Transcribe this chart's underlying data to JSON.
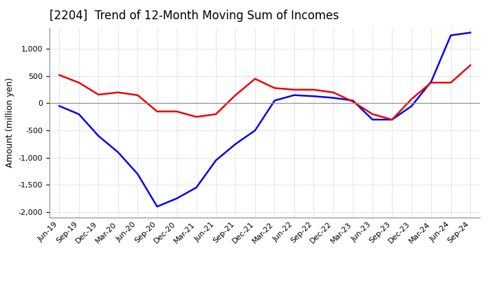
{
  "title": "[2204]  Trend of 12-Month Moving Sum of Incomes",
  "ylabel": "Amount (million yen)",
  "background_color": "#ffffff",
  "grid_color": "#bbbbbb",
  "line_color_ordinary": "#0000ee",
  "line_color_net": "#ee0000",
  "x_labels": [
    "Jun-19",
    "Sep-19",
    "Dec-19",
    "Mar-20",
    "Jun-20",
    "Sep-20",
    "Dec-20",
    "Mar-21",
    "Jun-21",
    "Sep-21",
    "Dec-21",
    "Mar-22",
    "Jun-22",
    "Sep-22",
    "Dec-22",
    "Mar-23",
    "Jun-23",
    "Sep-23",
    "Dec-23",
    "Mar-24",
    "Jun-24",
    "Sep-24"
  ],
  "ordinary_income": [
    -50,
    -200,
    -600,
    -900,
    -1300,
    -1900,
    -1750,
    -1550,
    -1050,
    -750,
    -500,
    50,
    150,
    130,
    100,
    50,
    -300,
    -300,
    -50,
    400,
    1250,
    1300
  ],
  "net_income": [
    520,
    380,
    160,
    200,
    150,
    -150,
    -150,
    -250,
    -200,
    150,
    450,
    280,
    250,
    250,
    200,
    30,
    -200,
    -300,
    80,
    380,
    380,
    700
  ],
  "ylim": [
    -2100,
    1400
  ],
  "yticks": [
    -2000,
    -1500,
    -1000,
    -500,
    0,
    500,
    1000
  ],
  "title_fontsize": 12,
  "axis_fontsize": 9,
  "tick_fontsize": 8,
  "legend_fontsize": 9
}
